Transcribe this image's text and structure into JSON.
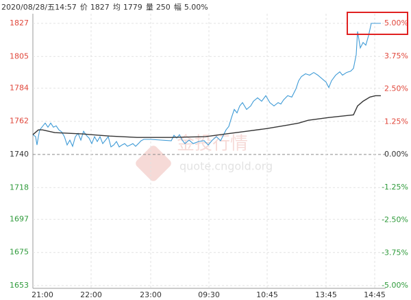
{
  "chart_data": {
    "type": "line",
    "header": {
      "datetime": "2020/08/28/五14:57",
      "fields": [
        {
          "label": "价",
          "value": 1827
        },
        {
          "label": "均",
          "value": 1779
        },
        {
          "label": "量",
          "value": 250
        },
        {
          "label": "幅",
          "value": "5.00%"
        }
      ]
    },
    "watermark": [
      "金投行情",
      "quote.cngold.org"
    ],
    "baseline": 1740,
    "up_color": "#e0463a",
    "down_color": "#2e9a3a",
    "grid": true,
    "xlim": [
      0,
      515
    ],
    "xticks": [
      {
        "value": 14,
        "label": "21:00"
      },
      {
        "value": 85,
        "label": "22:00"
      },
      {
        "value": 172,
        "label": "23:00"
      },
      {
        "value": 257,
        "label": "09:30"
      },
      {
        "value": 342,
        "label": "10:45"
      },
      {
        "value": 428,
        "label": "13:45"
      },
      {
        "value": 499,
        "label": "14:45"
      }
    ],
    "ylim": [
      1653,
      1827
    ],
    "yticks": [
      1827,
      1805,
      1784,
      1762,
      1740,
      1718,
      1697,
      1675,
      1653
    ],
    "y2lim": [
      -5,
      5
    ],
    "y2ticks": [
      {
        "value": 5,
        "label": "5.00%"
      },
      {
        "value": 3.75,
        "label": "3.75%"
      },
      {
        "value": 2.5,
        "label": "2.50%"
      },
      {
        "value": 1.25,
        "label": "1.25%"
      },
      {
        "value": 0,
        "label": "0.00%"
      },
      {
        "value": -1.25,
        "label": "-1.25%"
      },
      {
        "value": -2.5,
        "label": "-2.50%"
      },
      {
        "value": -3.75,
        "label": "-3.75%"
      },
      {
        "value": -5,
        "label": "-5.00%"
      }
    ],
    "series": [
      {
        "color": "#3d9ad6",
        "x": [
          0,
          4,
          6,
          8,
          10,
          14,
          18,
          22,
          26,
          30,
          34,
          38,
          42,
          46,
          50,
          54,
          58,
          62,
          66,
          70,
          74,
          78,
          82,
          86,
          90,
          94,
          98,
          102,
          106,
          110,
          114,
          118,
          122,
          126,
          130,
          134,
          138,
          142,
          146,
          150,
          154,
          158,
          162,
          172,
          202,
          206,
          210,
          214,
          218,
          222,
          228,
          234,
          242,
          250,
          256,
          262,
          268,
          274,
          282,
          286,
          290,
          294,
          298,
          302,
          306,
          312,
          318,
          322,
          328,
          334,
          340,
          346,
          352,
          358,
          362,
          366,
          372,
          378,
          384,
          388,
          392,
          398,
          404,
          410,
          416,
          422,
          428,
          432,
          436,
          442,
          448,
          452,
          458,
          464,
          468,
          472,
          474,
          478,
          482,
          486,
          490,
          494,
          498,
          502,
          508
        ],
        "values": [
          1753.1,
          1751.8,
          1746.3,
          1751.8,
          1756.3,
          1758.6,
          1760.8,
          1758.1,
          1760.8,
          1758.1,
          1759.0,
          1756.3,
          1755.0,
          1751.8,
          1746.3,
          1749.5,
          1745.4,
          1751.8,
          1754.0,
          1749.5,
          1755.4,
          1752.7,
          1750.9,
          1747.2,
          1751.8,
          1748.6,
          1751.8,
          1747.2,
          1749.5,
          1751.8,
          1745.0,
          1746.3,
          1748.6,
          1745.0,
          1746.3,
          1747.2,
          1745.4,
          1746.3,
          1747.2,
          1745.4,
          1747.2,
          1749.1,
          1750.0,
          1750.0,
          1749.1,
          1752.7,
          1750.9,
          1753.1,
          1749.5,
          1747.2,
          1749.5,
          1747.2,
          1748.6,
          1749.1,
          1746.3,
          1749.5,
          1751.8,
          1749.1,
          1756.3,
          1758.6,
          1764.5,
          1769.9,
          1767.6,
          1772.2,
          1774.4,
          1769.9,
          1772.2,
          1775.3,
          1777.6,
          1775.3,
          1779.0,
          1774.4,
          1772.2,
          1774.4,
          1773.5,
          1776.2,
          1779.0,
          1778.1,
          1783.5,
          1788.9,
          1791.7,
          1793.5,
          1792.6,
          1794.4,
          1792.6,
          1790.3,
          1788.0,
          1784.4,
          1788.9,
          1792.6,
          1794.8,
          1792.6,
          1794.4,
          1795.3,
          1797.1,
          1806.2,
          1821.6,
          1810.7,
          1814.3,
          1812.5,
          1818.8,
          1827,
          1827,
          1827,
          1827
        ]
      },
      {
        "color": "#333333",
        "x": [
          0,
          8,
          14,
          32,
          72,
          112,
          152,
          202,
          252,
          282,
          312,
          342,
          372,
          388,
          402,
          432,
          468,
          474,
          482,
          492,
          500,
          508
        ],
        "values": [
          1753.1,
          1756.3,
          1756.3,
          1754.5,
          1753.6,
          1752.2,
          1751.3,
          1751.3,
          1751.8,
          1753.6,
          1755.4,
          1757.2,
          1759.5,
          1760.8,
          1762.7,
          1764.5,
          1766.3,
          1772.2,
          1775.3,
          1778.1,
          1779.0,
          1779.0
        ]
      }
    ]
  }
}
